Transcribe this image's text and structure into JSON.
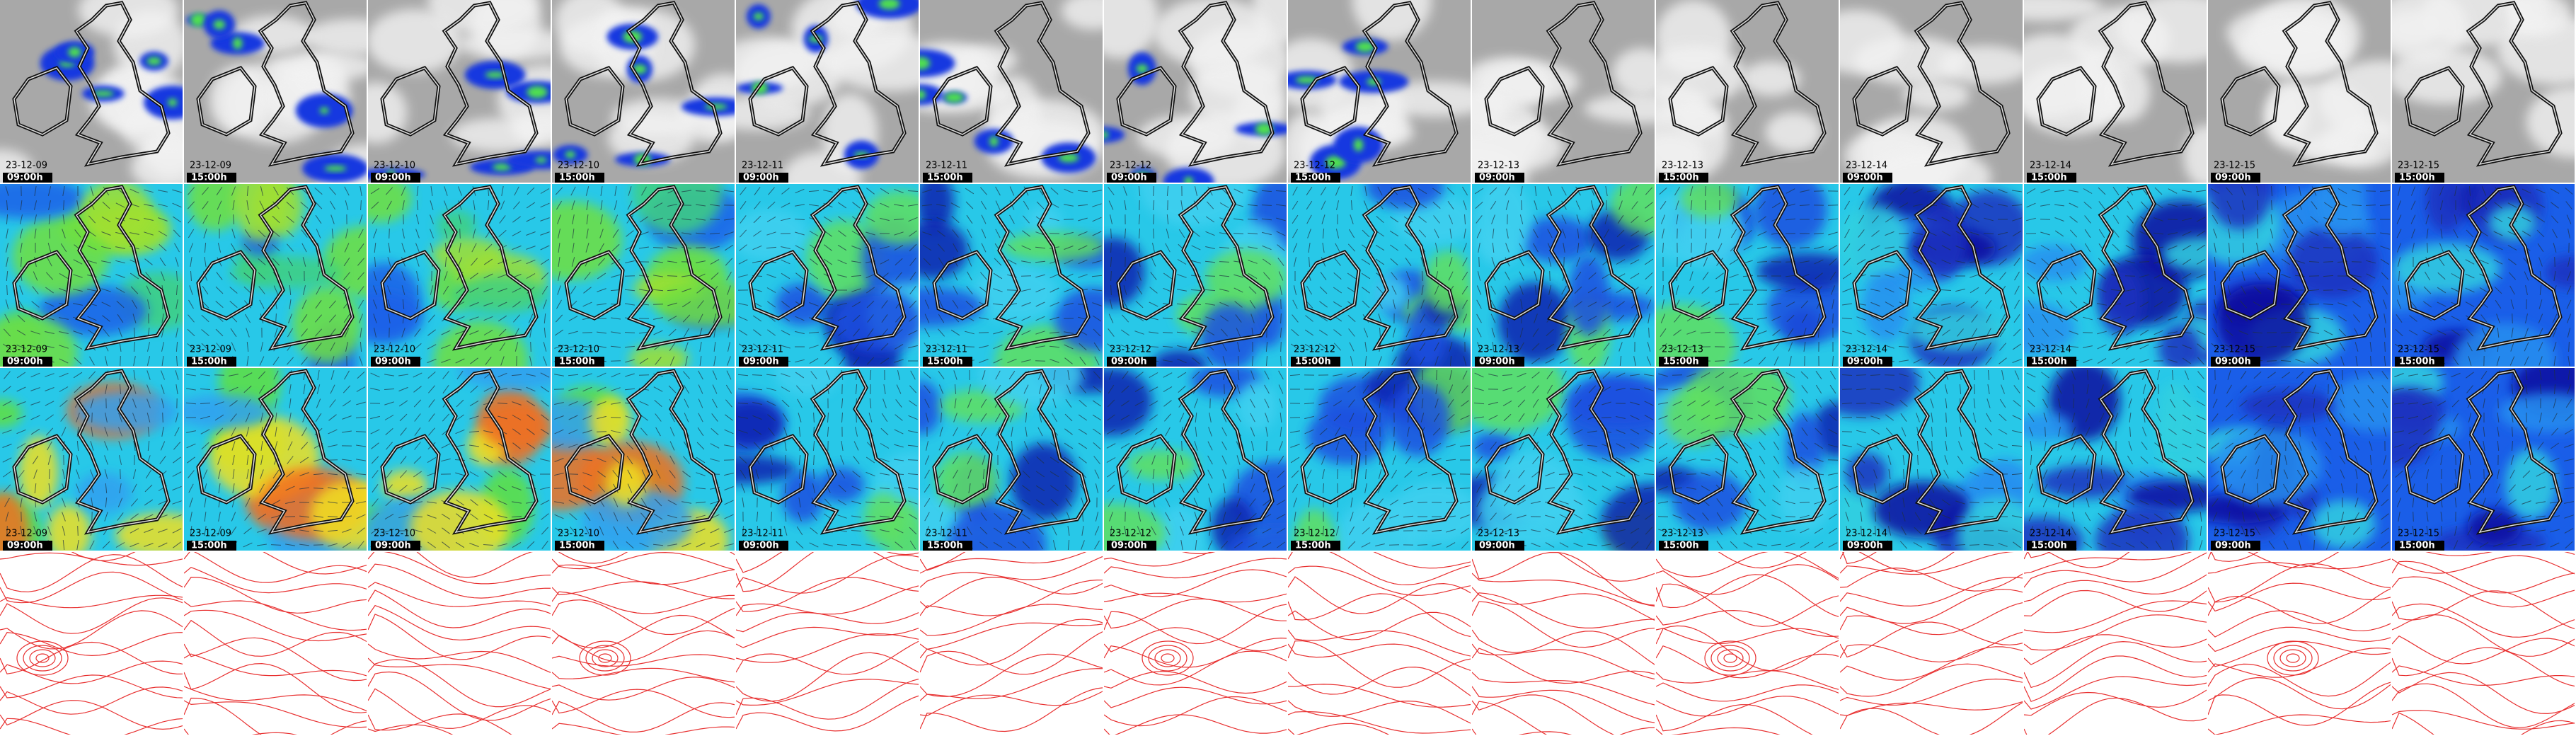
{
  "columns": [
    {
      "date": "23-12-09",
      "time": "09:00h"
    },
    {
      "date": "23-12-09",
      "time": "15:00h"
    },
    {
      "date": "23-12-10",
      "time": "09:00h"
    },
    {
      "date": "23-12-10",
      "time": "15:00h"
    },
    {
      "date": "23-12-11",
      "time": "09:00h"
    },
    {
      "date": "23-12-11",
      "time": "15:00h"
    },
    {
      "date": "23-12-12",
      "time": "09:00h"
    },
    {
      "date": "23-12-12",
      "time": "15:00h"
    },
    {
      "date": "23-12-13",
      "time": "09:00h"
    },
    {
      "date": "23-12-13",
      "time": "15:00h"
    },
    {
      "date": "23-12-14",
      "time": "09:00h"
    },
    {
      "date": "23-12-14",
      "time": "15:00h"
    },
    {
      "date": "23-12-15",
      "time": "09:00h"
    },
    {
      "date": "23-12-15",
      "time": "15:00h"
    }
  ]
}
